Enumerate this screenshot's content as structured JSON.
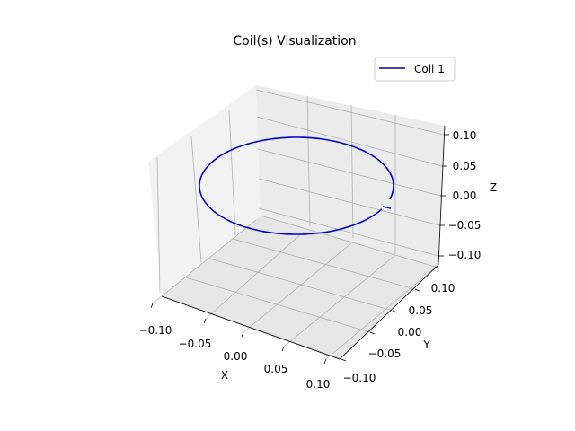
{
  "chart_data": {
    "type": "line",
    "projection": "3d",
    "title": "Coil(s) Visualization",
    "xlabel": "X",
    "ylabel": "Y",
    "zlabel": "Z",
    "xlim": [
      -0.12,
      0.12
    ],
    "ylim": [
      -0.12,
      0.12
    ],
    "zlim": [
      -0.11,
      0.11
    ],
    "xticks": [
      "−0.10",
      "−0.05",
      "0.00",
      "0.05",
      "0.10"
    ],
    "yticks": [
      "−0.10",
      "−0.05",
      "0.00",
      "0.05",
      "0.10"
    ],
    "zticks": [
      "−0.10",
      "−0.05",
      "0.00",
      "0.05",
      "0.10"
    ],
    "grid": true,
    "legend_position": "upper right",
    "series": [
      {
        "name": "Coil 1",
        "color": "#0000cc",
        "shape": "single-turn circular coil in the z = 0 plane",
        "radius": 0.1,
        "center": [
          0,
          0,
          0
        ],
        "turns": 1
      }
    ]
  }
}
